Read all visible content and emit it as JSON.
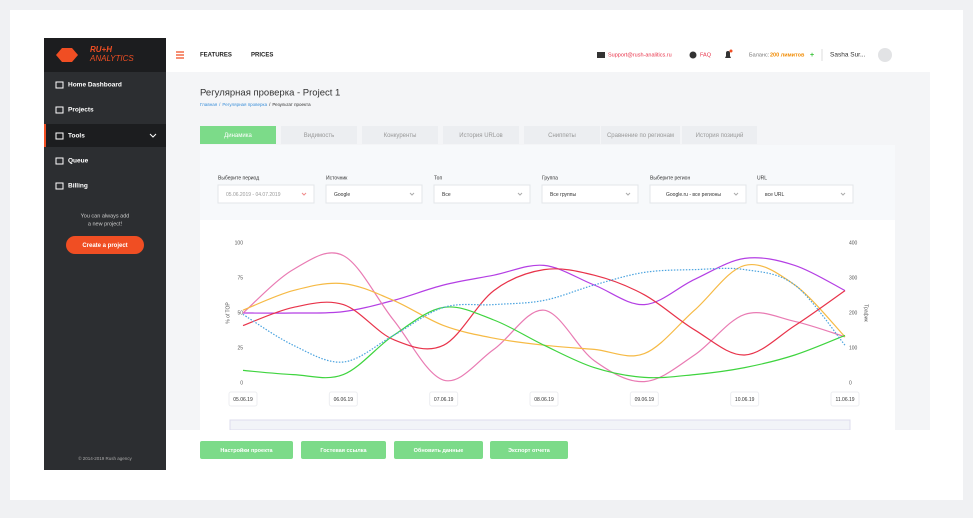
{
  "sidebar": {
    "logo": [
      "RU+H",
      "ANALYTICS"
    ],
    "menu": [
      "Home Dashboard",
      "Projects",
      "Tools",
      "Queue",
      "Billing"
    ],
    "hint": [
      "You can always add",
      "a new project!"
    ],
    "create_button": "Create a project",
    "footer": "© 2014-2019 Rush agency"
  },
  "topbar": {
    "links": [
      "FEATURES",
      "PRICES"
    ],
    "support": "Support@rush-analitics.ru",
    "faq": "FAQ",
    "balance_label": "Баланс:",
    "balance_value": "200 лимитов",
    "balance_add": "+",
    "user": "Sasha Sur..."
  },
  "header": {
    "title": "Регулярная проверка - Project 1",
    "breadcrumb": [
      "Главная",
      "/",
      "Регулярная проверка",
      "/",
      "Результат проекта"
    ]
  },
  "tabs": [
    "Динамика",
    "Видимость",
    "Конкуренты",
    "История URLов",
    "Сниппеты",
    "Сравнение по регионам",
    "История позиций"
  ],
  "filters": [
    {
      "label": "Выберите период",
      "value": "05.06.2019 - 04.07.2019"
    },
    {
      "label": "Источник",
      "value": "Google"
    },
    {
      "label": "Топ",
      "value": "Все"
    },
    {
      "label": "Группа",
      "value": "Все группы"
    },
    {
      "label": "Выберите регион",
      "value": "Google.ru - все регионы"
    },
    {
      "label": "URL",
      "value": "все URL"
    }
  ],
  "buttons": [
    "Настройки проекта",
    "Гостевая ссылка",
    "Обновить данные",
    "Экспорт отчета"
  ],
  "chart_data": {
    "type": "line",
    "y_label": "% of TOP",
    "y2_label": "Трафик",
    "categories": [
      "05.06.19",
      null,
      "06.06.19",
      null,
      "07.06.19",
      null,
      "08.06.19",
      null,
      "09.06.19",
      null,
      "10.06.19",
      null,
      "11.06.19"
    ],
    "ylim": [
      0,
      100
    ],
    "yticks": [
      0,
      25,
      50,
      75,
      100
    ],
    "y2lim": [
      0,
      400
    ],
    "y2ticks": [
      0,
      100,
      200,
      300,
      400
    ],
    "grid": false,
    "series": [
      {
        "color": "#b43fe4",
        "values": [
          50,
          50,
          51,
          59,
          70,
          77,
          84,
          70,
          56,
          74,
          89,
          84,
          66
        ]
      },
      {
        "color": "#e97bb3",
        "values": [
          50,
          81,
          91,
          45,
          2,
          24,
          52,
          16,
          1,
          20,
          49,
          44,
          33
        ]
      },
      {
        "color": "#f6ba45",
        "values": [
          52,
          66,
          71,
          59,
          41,
          32,
          27,
          24,
          21,
          52,
          84,
          70,
          33
        ]
      },
      {
        "color": "#e8334a",
        "values": [
          41,
          54,
          56,
          31,
          27,
          66,
          81,
          77,
          63,
          38,
          20,
          41,
          66
        ]
      },
      {
        "color": "#3fd43f",
        "values": [
          9,
          6,
          6,
          34,
          54,
          45,
          27,
          11,
          4,
          6,
          11,
          20,
          34
        ]
      },
      {
        "color": "#4aa3df",
        "dashed": true,
        "values": [
          49,
          27,
          15,
          34,
          54,
          56,
          59,
          70,
          79,
          81,
          81,
          70,
          27
        ]
      }
    ]
  }
}
